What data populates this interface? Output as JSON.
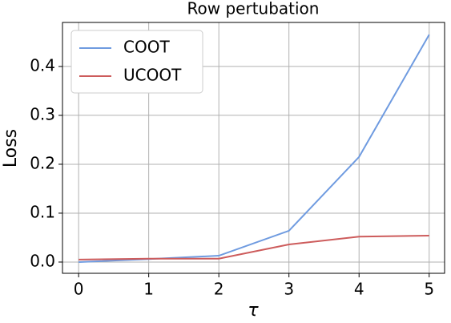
{
  "chart_data": {
    "type": "line",
    "title": "Row pertubation",
    "x_label": "τ",
    "y_label": "Loss",
    "x": [
      0,
      1,
      2,
      3,
      4,
      5
    ],
    "series": [
      {
        "name": "COOT",
        "color": "#6f9be0",
        "values": [
          0.0,
          0.006,
          0.013,
          0.064,
          0.215,
          0.465
        ]
      },
      {
        "name": "UCOOT",
        "color": "#cd5c5c",
        "values": [
          0.005,
          0.007,
          0.007,
          0.036,
          0.052,
          0.054
        ]
      }
    ],
    "xlim": [
      -0.23,
      5.22
    ],
    "xticks": [
      0,
      1,
      2,
      3,
      4,
      5
    ],
    "ylim": [
      -0.023,
      0.49
    ],
    "yticks": [
      {
        "value": 0,
        "label": "0.0"
      },
      0.1,
      0.2,
      0.3,
      0.4
    ],
    "grid": true,
    "legend": "upper left"
  }
}
